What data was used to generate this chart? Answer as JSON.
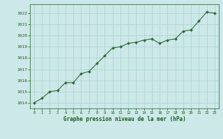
{
  "x": [
    0,
    1,
    2,
    3,
    4,
    5,
    6,
    7,
    8,
    9,
    10,
    11,
    12,
    13,
    14,
    15,
    16,
    17,
    18,
    19,
    20,
    21,
    22,
    23
  ],
  "y": [
    1014.0,
    1014.4,
    1015.0,
    1015.1,
    1015.8,
    1015.8,
    1016.6,
    1016.8,
    1017.5,
    1018.2,
    1018.9,
    1019.0,
    1019.3,
    1019.4,
    1019.6,
    1019.7,
    1019.3,
    1019.6,
    1019.7,
    1020.4,
    1020.5,
    1021.3,
    1022.1,
    1022.0
  ],
  "line_color": "#2d6a2d",
  "marker_color": "#2d6a2d",
  "bg_color": "#cce8e8",
  "grid_color": "#aad0d0",
  "xlabel": "Graphe pression niveau de la mer (hPa)",
  "xlabel_color": "#1a5c1a",
  "tick_color": "#1a5c1a",
  "ylim_min": 1013.5,
  "ylim_max": 1022.8,
  "xlim_min": -0.5,
  "xlim_max": 23.5,
  "yticks": [
    1014,
    1015,
    1016,
    1017,
    1018,
    1019,
    1020,
    1021,
    1022
  ],
  "xticks": [
    0,
    1,
    2,
    3,
    4,
    5,
    6,
    7,
    8,
    9,
    10,
    11,
    12,
    13,
    14,
    15,
    16,
    17,
    18,
    19,
    20,
    21,
    22,
    23
  ]
}
